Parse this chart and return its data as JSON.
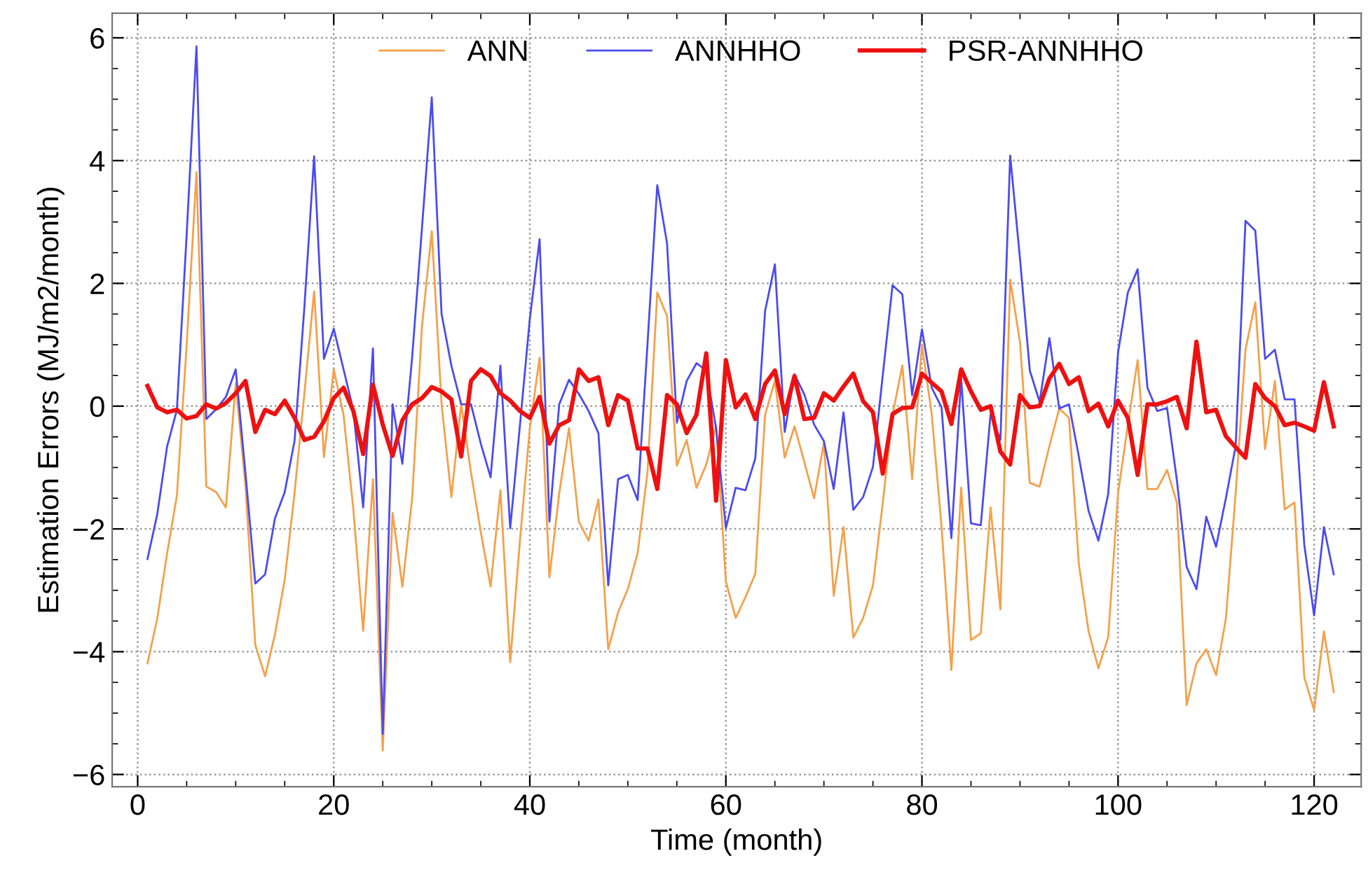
{
  "chart_data": {
    "type": "line",
    "xlabel": "Time (month)",
    "ylabel": "Estimation Errors (MJ/m2/month)",
    "x": [
      1,
      2,
      3,
      4,
      5,
      6,
      7,
      8,
      9,
      10,
      11,
      12,
      13,
      14,
      15,
      16,
      17,
      18,
      19,
      20,
      21,
      22,
      23,
      24,
      25,
      26,
      27,
      28,
      29,
      30,
      31,
      32,
      33,
      34,
      35,
      36,
      37,
      38,
      39,
      40,
      41,
      42,
      43,
      44,
      45,
      46,
      47,
      48,
      49,
      50,
      51,
      52,
      53,
      54,
      55,
      56,
      57,
      58,
      59,
      60,
      61,
      62,
      63,
      64,
      65,
      66,
      67,
      68,
      69,
      70,
      71,
      72,
      73,
      74,
      75,
      76,
      77,
      78,
      79,
      80,
      81,
      82,
      83,
      84,
      85,
      86,
      87,
      88,
      89,
      90,
      91,
      92,
      93,
      94,
      95,
      96,
      97,
      98,
      99,
      100,
      101,
      102,
      103,
      104,
      105,
      106,
      107,
      108,
      109,
      110,
      111,
      112,
      113,
      114,
      115,
      116,
      117,
      118,
      119,
      120,
      121,
      122
    ],
    "series": [
      {
        "name": "ANN",
        "color": "#f5a04a",
        "values": [
          -4.19,
          -3.46,
          -2.4,
          -1.46,
          1.0,
          3.81,
          -1.31,
          -1.4,
          -1.65,
          0.37,
          -1.3,
          -3.89,
          -4.4,
          -3.72,
          -2.83,
          -1.42,
          0.2,
          1.87,
          -0.83,
          0.6,
          -0.14,
          -1.68,
          -3.66,
          -1.19,
          -5.61,
          -1.74,
          -2.94,
          -1.5,
          1.3,
          2.85,
          0.03,
          -1.48,
          0.03,
          -1.08,
          -2.05,
          -2.94,
          -1.37,
          -4.17,
          -2.18,
          -0.36,
          0.79,
          -2.79,
          -1.42,
          -0.36,
          -1.88,
          -2.19,
          -1.52,
          -3.96,
          -3.36,
          -2.98,
          -2.39,
          -1.08,
          1.85,
          1.47,
          -0.97,
          -0.55,
          -1.33,
          -0.95,
          -0.31,
          -2.86,
          -3.45,
          -3.11,
          -2.73,
          -0.14,
          0.41,
          -0.84,
          -0.33,
          -0.91,
          -1.5,
          -0.59,
          -3.09,
          -1.97,
          -3.77,
          -3.45,
          -2.92,
          -1.58,
          -0.14,
          0.66,
          -1.19,
          1.0,
          -0.14,
          -1.97,
          -4.3,
          -1.33,
          -3.81,
          -3.7,
          -1.65,
          -3.31,
          2.06,
          1.04,
          -1.25,
          -1.31,
          -0.65,
          -0.04,
          -0.19,
          -2.57,
          -3.67,
          -4.27,
          -3.76,
          -1.42,
          -0.31,
          0.75,
          -1.35,
          -1.35,
          -1.04,
          -1.57,
          -4.87,
          -4.19,
          -3.96,
          -4.38,
          -3.46,
          -1.42,
          0.92,
          1.69,
          -0.7,
          0.41,
          -1.68,
          -1.57,
          -4.42,
          -4.95,
          -3.67,
          -4.66
        ]
      },
      {
        "name": "ANNHHO",
        "color": "#4b4bf0",
        "values": [
          -2.49,
          -1.76,
          -0.66,
          -0.06,
          2.8,
          5.86,
          -0.21,
          -0.05,
          0.15,
          0.6,
          -1.1,
          -2.89,
          -2.74,
          -1.83,
          -1.4,
          -0.57,
          1.6,
          4.07,
          0.77,
          1.26,
          0.6,
          -0.06,
          -1.65,
          0.94,
          -5.34,
          0.03,
          -0.94,
          0.8,
          2.9,
          5.03,
          1.5,
          0.66,
          0.03,
          0.03,
          -0.61,
          -1.16,
          0.66,
          -1.99,
          -0.3,
          1.42,
          2.72,
          -1.88,
          0.03,
          0.43,
          0.2,
          -0.08,
          -0.44,
          -2.92,
          -1.19,
          -1.12,
          -1.53,
          1.0,
          3.6,
          2.65,
          -0.27,
          0.41,
          0.7,
          0.58,
          -0.36,
          -1.99,
          -1.33,
          -1.37,
          -0.85,
          1.55,
          2.31,
          -0.42,
          0.52,
          0.19,
          -0.3,
          -0.57,
          -1.35,
          -0.1,
          -1.69,
          -1.48,
          -0.99,
          0.5,
          1.97,
          1.82,
          0.18,
          1.25,
          0.3,
          -0.02,
          -2.15,
          0.45,
          -1.91,
          -1.94,
          -0.13,
          -0.55,
          4.08,
          2.4,
          0.58,
          0.07,
          1.11,
          -0.04,
          0.03,
          -0.82,
          -1.71,
          -2.19,
          -1.43,
          0.87,
          1.85,
          2.23,
          0.3,
          -0.08,
          -0.03,
          -1.2,
          -2.62,
          -2.98,
          -1.8,
          -2.29,
          -1.5,
          -0.65,
          3.02,
          2.86,
          0.77,
          0.92,
          0.11,
          0.11,
          -2.26,
          -3.41,
          -1.97,
          -2.74
        ]
      },
      {
        "name": "PSR-ANNHHO",
        "color": "#ee1111",
        "values": [
          0.33,
          -0.02,
          -0.1,
          -0.06,
          -0.2,
          -0.16,
          0.03,
          -0.04,
          0.05,
          0.21,
          0.41,
          -0.42,
          -0.06,
          -0.13,
          0.09,
          -0.19,
          -0.55,
          -0.5,
          -0.25,
          0.13,
          0.3,
          -0.08,
          -0.78,
          0.35,
          -0.3,
          -0.81,
          -0.23,
          0.03,
          0.13,
          0.31,
          0.24,
          0.11,
          -0.82,
          0.41,
          0.6,
          0.49,
          0.21,
          0.09,
          -0.08,
          -0.19,
          0.15,
          -0.61,
          -0.31,
          -0.23,
          0.6,
          0.41,
          0.47,
          -0.31,
          0.18,
          0.09,
          -0.69,
          -0.69,
          -1.35,
          0.18,
          0.03,
          -0.44,
          -0.14,
          0.86,
          -1.54,
          0.75,
          -0.02,
          0.19,
          -0.21,
          0.36,
          0.58,
          -0.13,
          0.49,
          -0.21,
          -0.19,
          0.21,
          0.09,
          0.32,
          0.53,
          0.08,
          -0.1,
          -1.1,
          -0.13,
          -0.03,
          -0.02,
          0.53,
          0.38,
          0.24,
          -0.29,
          0.6,
          0.24,
          -0.06,
          0.0,
          -0.74,
          -0.95,
          0.18,
          -0.02,
          0.0,
          0.45,
          0.69,
          0.36,
          0.47,
          -0.08,
          0.04,
          -0.33,
          0.09,
          -0.19,
          -1.12,
          0.03,
          0.03,
          0.08,
          0.15,
          -0.36,
          1.05,
          -0.1,
          -0.06,
          -0.49,
          -0.67,
          -0.84,
          0.36,
          0.13,
          0.0,
          -0.31,
          -0.27,
          -0.33,
          -0.4,
          0.39,
          -0.33
        ]
      }
    ],
    "xlim": [
      -2.6,
      124.8
    ],
    "ylim": [
      -6.2,
      6.4
    ],
    "xticks": [
      0,
      20,
      40,
      60,
      80,
      100,
      120
    ],
    "yticks": [
      -6,
      -4,
      -2,
      0,
      2,
      4,
      6
    ],
    "grid": true,
    "legend": "top",
    "marker": "none",
    "line_style": "solid"
  }
}
